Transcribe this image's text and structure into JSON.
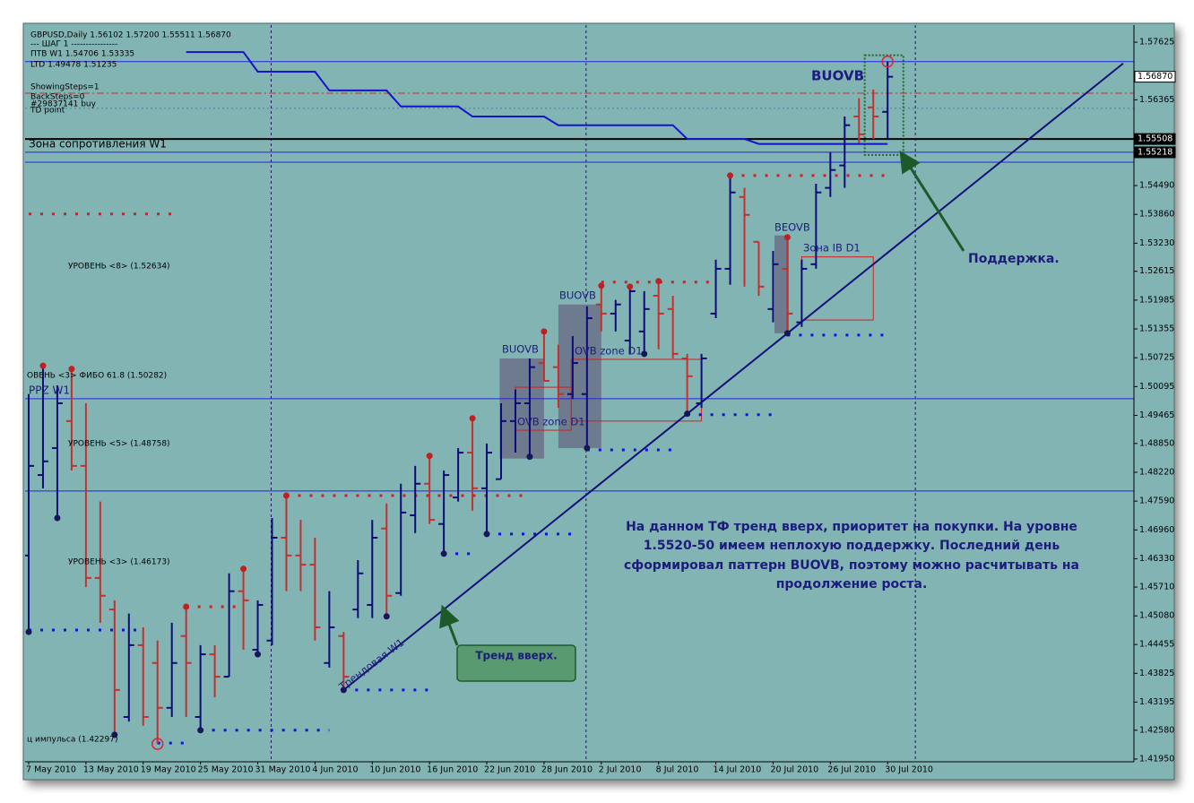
{
  "chart_data": {
    "type": "ohlc",
    "title": "GBPUSD,Daily  1.56102 1.57200 1.55511 1.56870",
    "categories": [
      "7 May 2010",
      null,
      null,
      null,
      "13 May 2010",
      null,
      null,
      null,
      "19 May 2010",
      null,
      null,
      null,
      "25 May 2010",
      null,
      null,
      null,
      "31 May 2010",
      null,
      null,
      null,
      "4 Jun 2010",
      null,
      null,
      null,
      "10 Jun 2010",
      null,
      null,
      null,
      "16 Jun 2010",
      null,
      null,
      null,
      "22 Jun 2010",
      null,
      null,
      null,
      "28 Jun 2010",
      null,
      null,
      null,
      "2 Jul 2010",
      null,
      null,
      null,
      "8 Jul 2010",
      null,
      null,
      null,
      "14 Jul 2010",
      null,
      null,
      null,
      "20 Jul 2010",
      null,
      null,
      null,
      "26 Jul 2010",
      null,
      null,
      null,
      "30 Jul 2010"
    ],
    "open": [
      1.464,
      1.4816,
      1.4875,
      1.4934,
      1.4836,
      1.4591,
      1.4522,
      1.4287,
      1.4444,
      1.4405,
      1.4307,
      1.4464,
      1.4287,
      1.4424,
      1.4375,
      1.4562,
      1.4434,
      1.4454,
      1.4679,
      1.464,
      1.462,
      1.4405,
      1.4464,
      1.4522,
      1.4532,
      1.4699,
      1.4558,
      1.4728,
      1.4797,
      1.4709,
      1.4767,
      1.4865,
      1.4787,
      1.4807,
      1.4934,
      1.4973,
      1.5061,
      1.5052,
      1.4993,
      1.4993,
      1.5189,
      1.5169,
      1.511,
      1.513,
      1.5208,
      1.5179,
      1.5071,
      1.4973,
      1.5169,
      1.5267,
      1.5424,
      1.5326,
      1.5179,
      1.5267,
      1.515,
      1.5277,
      1.5444,
      1.5493,
      1.56,
      1.562,
      1.56102
    ],
    "high": [
      1.4993,
      1.5055,
      1.5012,
      1.5048,
      1.4973,
      1.4758,
      1.4542,
      1.4513,
      1.4483,
      1.4454,
      1.4493,
      1.4528,
      1.4444,
      1.4444,
      1.4601,
      1.4611,
      1.4542,
      1.4722,
      1.4771,
      1.4718,
      1.4679,
      1.4562,
      1.4473,
      1.463,
      1.4718,
      1.4754,
      1.4797,
      1.4836,
      1.4858,
      1.4826,
      1.4875,
      1.494,
      1.4885,
      1.4973,
      1.5003,
      1.5071,
      1.513,
      1.5101,
      1.512,
      1.5185,
      1.523,
      1.5199,
      1.5228,
      1.5218,
      1.524,
      1.5208,
      1.5081,
      1.5081,
      1.5287,
      1.5471,
      1.5444,
      1.5326,
      1.5306,
      1.5336,
      1.5287,
      1.5453,
      1.5522,
      1.56,
      1.564,
      1.5659,
      1.572
    ],
    "low": [
      1.4473,
      1.4787,
      1.4722,
      1.4826,
      1.4571,
      1.4493,
      1.4248,
      1.4277,
      1.4268,
      1.4228,
      1.4287,
      1.4287,
      1.4258,
      1.433,
      1.4375,
      1.4434,
      1.4424,
      1.4444,
      1.4562,
      1.4562,
      1.4454,
      1.4395,
      1.4346,
      1.4503,
      1.4503,
      1.4507,
      1.4552,
      1.4689,
      1.4709,
      1.4644,
      1.4758,
      1.4738,
      1.4687,
      1.4807,
      1.4865,
      1.4856,
      1.5022,
      1.4963,
      1.4983,
      1.4875,
      1.513,
      1.513,
      1.5081,
      1.5081,
      1.5091,
      1.5071,
      1.495,
      1.4963,
      1.5159,
      1.5232,
      1.5228,
      1.5208,
      1.515,
      1.5126,
      1.514,
      1.5267,
      1.5424,
      1.5444,
      1.5542,
      1.5551,
      1.55511
    ],
    "close": [
      1.4836,
      1.4846,
      1.4973,
      1.4836,
      1.4591,
      1.4552,
      1.4346,
      1.4444,
      1.4287,
      1.4307,
      1.4405,
      1.4405,
      1.4424,
      1.4375,
      1.4562,
      1.4542,
      1.4532,
      1.4679,
      1.464,
      1.462,
      1.4483,
      1.4483,
      1.4375,
      1.4601,
      1.4679,
      1.4552,
      1.4734,
      1.4797,
      1.4718,
      1.4816,
      1.4865,
      1.4787,
      1.4865,
      1.4934,
      1.4973,
      1.5052,
      1.5022,
      1.4993,
      1.5061,
      1.5159,
      1.5169,
      1.5189,
      1.5218,
      1.5179,
      1.5169,
      1.5081,
      1.5032,
      1.5071,
      1.5267,
      1.5434,
      1.5385,
      1.5228,
      1.5277,
      1.5169,
      1.5267,
      1.5434,
      1.5483,
      1.5581,
      1.5561,
      1.56,
      1.5687
    ],
    "up_color": "#0c0c78",
    "down_color": "#c43030",
    "indicator": {
      "color": "#1414c8",
      "values": [
        null,
        null,
        null,
        null,
        null,
        null,
        null,
        null,
        null,
        null,
        null,
        1.5741,
        1.5741,
        1.5741,
        1.5741,
        1.5741,
        1.5698,
        1.5698,
        1.5698,
        1.5698,
        1.5698,
        1.5657,
        1.5657,
        1.5657,
        1.5657,
        1.5657,
        1.5622,
        1.5622,
        1.5622,
        1.5622,
        1.5622,
        1.56,
        1.56,
        1.56,
        1.56,
        1.56,
        1.56,
        1.5581,
        1.5581,
        1.5581,
        1.5581,
        1.5581,
        1.5581,
        1.5581,
        1.5581,
        1.5581,
        1.5551,
        1.5551,
        1.5551,
        1.5551,
        1.5551,
        1.554,
        1.554,
        1.554,
        1.554,
        1.554,
        1.554,
        1.554,
        1.554,
        1.554,
        1.554
      ]
    },
    "ylim": [
      1.4189,
      1.5796
    ],
    "yticks": [
      1.57625,
      1.56365,
      {
        "value": 1.5449,
        "label": "1.54490"
      },
      {
        "value": 1.5386,
        "label": "1.53860"
      },
      {
        "value": 1.5323,
        "label": "1.53230"
      },
      1.52615,
      1.51985,
      1.51355,
      1.50725,
      1.50095,
      1.49465,
      {
        "value": 1.4885,
        "label": "1.48850"
      },
      {
        "value": 1.4822,
        "label": "1.48220"
      },
      {
        "value": 1.4759,
        "label": "1.47590"
      },
      {
        "value": 1.4696,
        "label": "1.46960"
      },
      {
        "value": 1.4633,
        "label": "1.46330"
      },
      {
        "value": 1.4571,
        "label": "1.45710"
      },
      {
        "value": 1.4508,
        "label": "1.45080"
      },
      1.44455,
      1.43825,
      1.43195,
      {
        "value": 1.4258,
        "label": "1.42580"
      },
      {
        "value": 1.4195,
        "label": "1.41950"
      }
    ],
    "price_labels": [
      {
        "value": 1.5687,
        "label": "1.56870",
        "background": "#ffffff"
      },
      {
        "value": 1.55508,
        "label": "1.55508",
        "background": "#000000"
      },
      {
        "value": 1.55218,
        "label": "1.55218",
        "background": "#000000"
      }
    ],
    "levels": [
      {
        "price": 1.572,
        "color": "#2323e0",
        "style": "solid"
      },
      {
        "price": 1.5651,
        "color": "#c43030",
        "style": "dashdot"
      },
      {
        "price": 1.5618,
        "color": "#4a7fa0",
        "style": "dot"
      },
      {
        "price": 1.55508,
        "color": "#000000",
        "style": "bold"
      },
      {
        "price": 1.55218,
        "color": "#2323e0",
        "style": "solid"
      },
      {
        "price": 1.55,
        "color": "#2323e0",
        "style": "solid"
      },
      {
        "price": 1.4983,
        "color": "#2323e0",
        "style": "solid"
      },
      {
        "price": 1.4781,
        "color": "#2323e0",
        "style": "solid"
      }
    ],
    "dotted_levels": [
      {
        "price": 1.5387,
        "from": 0,
        "to": 10,
        "color": "#d02020"
      },
      {
        "price": 1.4477,
        "from": 0,
        "to": 8,
        "color": "#1010e0"
      },
      {
        "price": 1.423,
        "from": 9,
        "to": 11,
        "color": "#1010e0"
      },
      {
        "price": 1.4258,
        "from": 12,
        "to": 21,
        "color": "#1010e0"
      },
      {
        "price": 1.4528,
        "from": 11,
        "to": 15,
        "color": "#d02020"
      },
      {
        "price": 1.4771,
        "from": 18,
        "to": 35,
        "color": "#d02020"
      },
      {
        "price": 1.4346,
        "from": 22,
        "to": 28,
        "color": "#1010e0"
      },
      {
        "price": 1.4644,
        "from": 29,
        "to": 31,
        "color": "#1010e0"
      },
      {
        "price": 1.4687,
        "from": 32,
        "to": 38,
        "color": "#1010e0"
      },
      {
        "price": 1.4871,
        "from": 39,
        "to": 45,
        "color": "#1010e0"
      },
      {
        "price": 1.4948,
        "from": 46,
        "to": 52,
        "color": "#1010e0"
      },
      {
        "price": 1.5238,
        "from": 40,
        "to": 48,
        "color": "#d02020"
      },
      {
        "price": 1.5471,
        "from": 49,
        "to": 60,
        "color": "#d02020"
      },
      {
        "price": 1.5122,
        "from": 53,
        "to": 60,
        "color": "#1010e0"
      }
    ],
    "pivot_highs": [
      1,
      3,
      11,
      15,
      18,
      28,
      31,
      36,
      40,
      42,
      44,
      49,
      53
    ],
    "pivot_lows": [
      0,
      2,
      6,
      12,
      16,
      22,
      25,
      29,
      32,
      35,
      39,
      43,
      46,
      53
    ],
    "circled_lows": [
      9
    ],
    "circled_highs": [
      60
    ],
    "month_separators": [
      17,
      39,
      62
    ],
    "trend_line": [
      [
        22,
        1.4346
      ],
      [
        53,
        1.5126
      ]
    ],
    "boxes": [
      {
        "x": [
          32.9,
          36.0
        ],
        "y": [
          1.4852,
          1.5071
        ],
        "kind": "pattern"
      },
      {
        "x": [
          37.0,
          40.0
        ],
        "y": [
          1.4875,
          1.5189
        ],
        "kind": "pattern"
      },
      {
        "x": [
          52.1,
          53.1
        ],
        "y": [
          1.5126,
          1.534
        ],
        "kind": "pattern"
      },
      {
        "x": [
          34.0,
          37.9
        ],
        "y": [
          1.4914,
          1.5008
        ],
        "kind": "zone"
      },
      {
        "x": [
          37.9,
          47.0
        ],
        "y": [
          1.4934,
          1.5069
        ],
        "kind": "zone"
      },
      {
        "x": [
          54.0,
          59.0
        ],
        "y": [
          1.5155,
          1.5293
        ],
        "kind": "zone"
      },
      {
        "x": [
          58.4,
          61.1
        ],
        "y": [
          1.5516,
          1.5734
        ],
        "kind": "signal"
      }
    ],
    "annotations": {
      "step": "---   ШАГ 1   ----------------",
      "ptv": "ПТВ W1  1.54706  1.53335",
      "ltd": "LTD  1.49478  1.51235",
      "showing_steps": "ShowingSteps=1",
      "back_steps": "BackSteps=0",
      "order": "#29837141 buy",
      "td_point": "TD point",
      "resistance_zone": "Зона сопротивления W1",
      "level8": "УРОВЕНЬ <8>     (1.52634)",
      "fibo": "ОВЕНЬ <3>     ФИБО 61.8 (1.50282)",
      "ppz": "PPZ W1",
      "level5": "УРОВЕНЬ <5>     (1.48758)",
      "level3": "УРОВЕНЬ <3>     (1.46173)",
      "impulse": "ц импульса   (1.42297)",
      "buovb_top": "BUOVB",
      "buovb_1": "BUOVB",
      "buovb_2": "BUOVB",
      "beovb": "BEOVB",
      "ovb_zone_1": "OVB zone D1",
      "ovb_zone_2": "OVB zone D1",
      "ib_zone": "Зона IB D1",
      "trend_label": "Трендовая W1",
      "trend_up": "Тренд вверх.",
      "support": "Поддержка.",
      "comment": [
        "На данном ТФ тренд вверх, приоритет на покупки. На уровне",
        "1.5520-50 имеем неплохую поддержку. Последний день",
        "сформировал паттерн BUOVB, поэтому можно расчитывать на",
        "продолжение роста."
      ]
    }
  }
}
